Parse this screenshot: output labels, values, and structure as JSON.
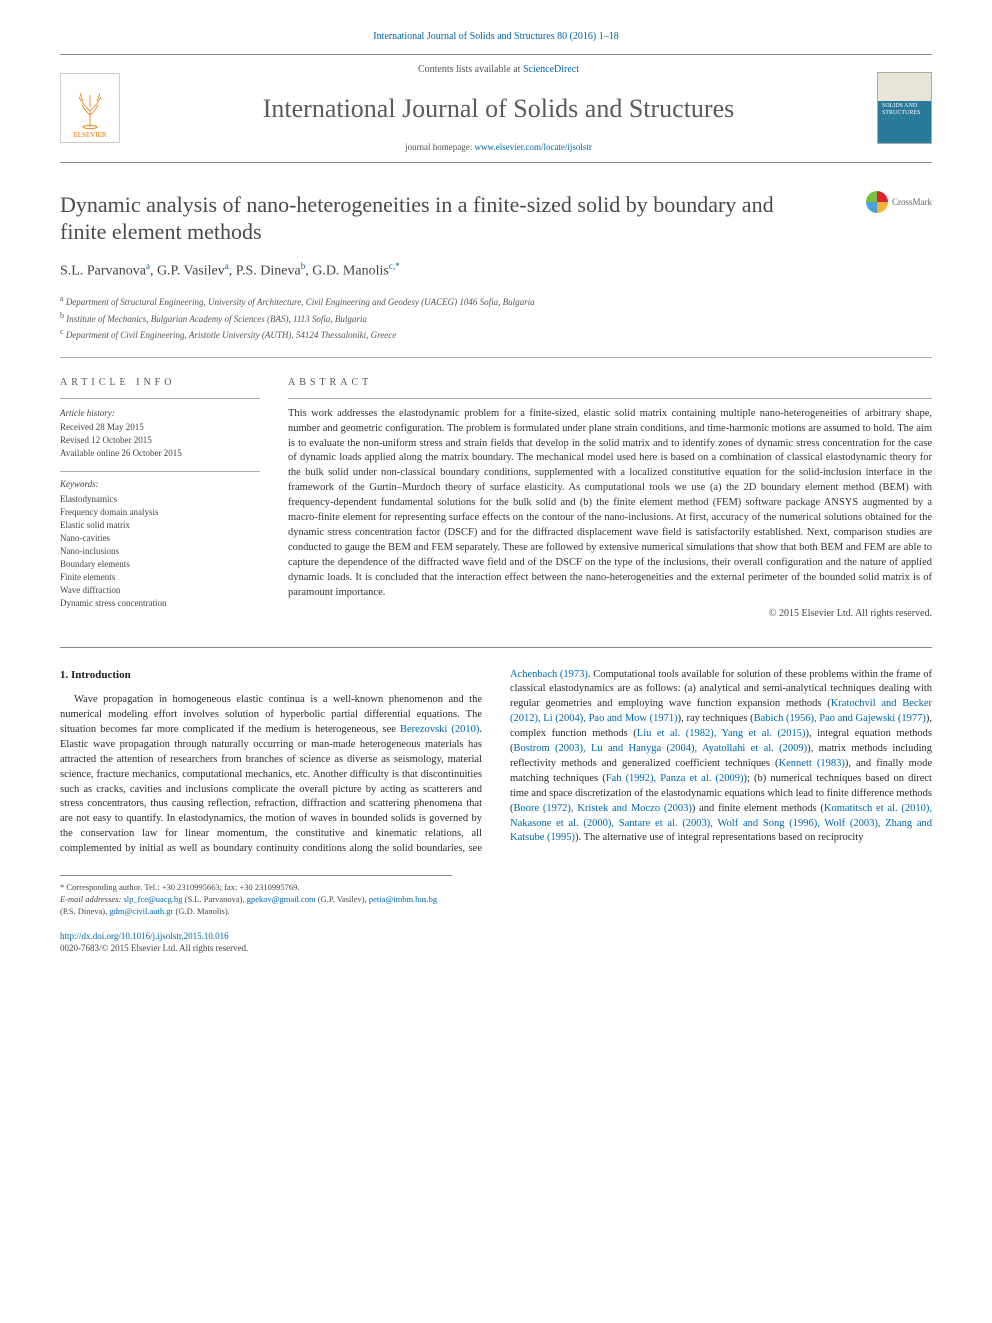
{
  "journal_ref": {
    "text": "International Journal of Solids and Structures 80 (2016) 1–18",
    "link_color": "#0066aa"
  },
  "masthead": {
    "elsevier_label": "ELSEVIER",
    "contents_prefix": "Contents lists available at ",
    "contents_link": "ScienceDirect",
    "journal_title": "International Journal of Solids and Structures",
    "homepage_prefix": "journal homepage: ",
    "homepage_link": "www.elsevier.com/locate/ijsolstr",
    "cover_text": "SOLIDS AND STRUCTURES"
  },
  "article": {
    "title": "Dynamic analysis of nano-heterogeneities in a finite-sized solid by boundary and finite element methods",
    "crossmark_label": "CrossMark",
    "authors_html": "S.L. Parvanova<sup>a</sup>, G.P. Vasilev<sup>a</sup>, P.S. Dineva<sup>b</sup>, G.D. Manolis<sup>c,*</sup>",
    "affiliations": [
      {
        "sup": "a",
        "text": "Department of Structural Engineering, University of Architecture, Civil Engineering and Geodesy (UACEG) 1046 Sofia, Bulgaria"
      },
      {
        "sup": "b",
        "text": "Institute of Mechanics, Bulgarian Academy of Sciences (BAS), 1113 Sofia, Bulgaria"
      },
      {
        "sup": "c",
        "text": "Department of Civil Engineering, Aristotle University (AUTH), 54124 Thessaloniki, Greece"
      }
    ]
  },
  "info": {
    "article_info_label": "ARTICLE INFO",
    "abstract_label": "ABSTRACT",
    "history_label": "Article history:",
    "history": [
      "Received 28 May 2015",
      "Revised 12 October 2015",
      "Available online 26 October 2015"
    ],
    "keywords_label": "Keywords:",
    "keywords": [
      "Elastodynamics",
      "Frequency domain analysis",
      "Elastic solid matrix",
      "Nano-cavities",
      "Nano-inclusions",
      "Boundary elements",
      "Finite elements",
      "Wave diffraction",
      "Dynamic stress concentration"
    ],
    "abstract": "This work addresses the elastodynamic problem for a finite-sized, elastic solid matrix containing multiple nano-heterogeneities of arbitrary shape, number and geometric configuration. The problem is formulated under plane strain conditions, and time-harmonic motions are assumed to hold. The aim is to evaluate the non-uniform stress and strain fields that develop in the solid matrix and to identify zones of dynamic stress concentration for the case of dynamic loads applied along the matrix boundary. The mechanical model used here is based on a combination of classical elastodynamic theory for the bulk solid under non-classical boundary conditions, supplemented with a localized constitutive equation for the solid-inclusion interface in the framework of the Gurtin–Murdoch theory of surface elasticity. As computational tools we use (a) the 2D boundary element method (BEM) with frequency-dependent fundamental solutions for the bulk solid and (b) the finite element method (FEM) software package ANSYS augmented by a macro-finite element for representing surface effects on the contour of the nano-inclusions. At first, accuracy of the numerical solutions obtained for the dynamic stress concentration factor (DSCF) and for the diffracted displacement wave field is satisfactorily established. Next, comparison studies are conducted to gauge the BEM and FEM separately. These are followed by extensive numerical simulations that show that both BEM and FEM are able to capture the dependence of the diffracted wave field and of the DSCF on the type of the inclusions, their overall configuration and the nature of applied dynamic loads. It is concluded that the interaction effect between the nano-heterogeneities and the external perimeter of the bounded solid matrix is of paramount importance.",
    "copyright": "© 2015 Elsevier Ltd. All rights reserved."
  },
  "body": {
    "heading": "1. Introduction",
    "para1_pre": "Wave propagation in homogeneous elastic continua is a well-known phenomenon and the numerical modeling effort involves solution of hyperbolic partial differential equations. The situation becomes far more complicated if the medium is heterogeneous, see ",
    "ref_berezovski": "Berezovski (2010)",
    "para1_mid": ". Elastic wave propagation through naturally occurring or man-made heterogeneous materials has attracted the attention of researchers from branches of science as diverse as seismology, material science, fracture mechanics, computational mechanics, etc. Another difficulty is that discontinuities such as cracks, cavities and inclusions complicate the overall picture by acting as scatterers and stress concentrators, thus causing reflection, refraction, diffraction and scattering phenomena that are not easy to quantify. In elastodynamics, the motion of waves in bounded solids is governed by the conservation law for linear momentum, the constitutive and kinematic relations, all complemented by initial as well as boundary continuity conditions along the solid boundaries, see ",
    "ref_achenbach": "Achenbach (1973)",
    "para1_post": ". Computational tools available for solution of these problems within the frame of classical elastodynamics are as follows: (a) analytical and semi-analytical techniques dealing with regular geometries and employing wave function expansion methods (",
    "ref_kratochvil": "Kratochvil and Becker (2012), Li (2004), Pao and Mow (1971)",
    "txt_ray": "), ray techniques (",
    "ref_babich": "Babich (1956), Pao and Gajewski (1977)",
    "txt_complex": "), complex function methods (",
    "ref_liu": "Liu et al. (1982), Yang et al. (2015)",
    "txt_integral": "), integral equation methods (",
    "ref_bostrom": "Bostrom (2003), Lu and Hanyga (2004), Ayatollahi et al. (2009)",
    "txt_matrix": "), matrix methods including reflectivity methods and generalized coefficient techniques (",
    "ref_kennett": "Kennett (1983)",
    "txt_mode": "), and finally mode matching techniques (",
    "ref_fah": "Fah (1992), Panza et al. (2009)",
    "txt_numerical": "); (b) numerical techniques based on direct time and space discretization of the elastodynamic equations which lead to finite difference methods (",
    "ref_boore": "Boore (1972), Kristek and Moczo (2003)",
    "txt_fem": ") and finite element methods (",
    "ref_komatitsch": "Komatitsch et al. (2010), Nakasone et al. (2000), Santare et al. (2003), Wolf and Song (1996), Wolf (2003), Zhang and Katsube (1995)",
    "txt_alt": "). The alternative use of integral representations based on reciprocity"
  },
  "footnote": {
    "corr_label": "* Corresponding author. Tel.: +30 2310995663; fax: +30 2310995769.",
    "email_label": "E-mail addresses: ",
    "emails": [
      {
        "addr": "slp_fce@uacg.bg",
        "who": " (S.L. Parvanova), "
      },
      {
        "addr": "gpekov@gmail.com",
        "who": " (G.P. Vasilev), "
      },
      {
        "addr": "petia@imbm.bas.bg",
        "who": " (P.S. Dineva), "
      },
      {
        "addr": "gdm@civil.auth.gr",
        "who": " (G.D. Manolis)."
      }
    ]
  },
  "footer": {
    "doi": "http://dx.doi.org/10.1016/j.ijsolstr.2015.10.016",
    "issn_line": "0020-7683/© 2015 Elsevier Ltd. All rights reserved."
  },
  "colors": {
    "link": "#0066aa",
    "text": "#2a2a2a",
    "heading": "#4a4a4a",
    "rule": "#888888",
    "elsevier_orange": "#e67700"
  },
  "typography": {
    "body_fontsize": 10.5,
    "title_fontsize": 22,
    "journal_title_fontsize": 26,
    "authors_fontsize": 14,
    "small_fontsize": 9
  }
}
